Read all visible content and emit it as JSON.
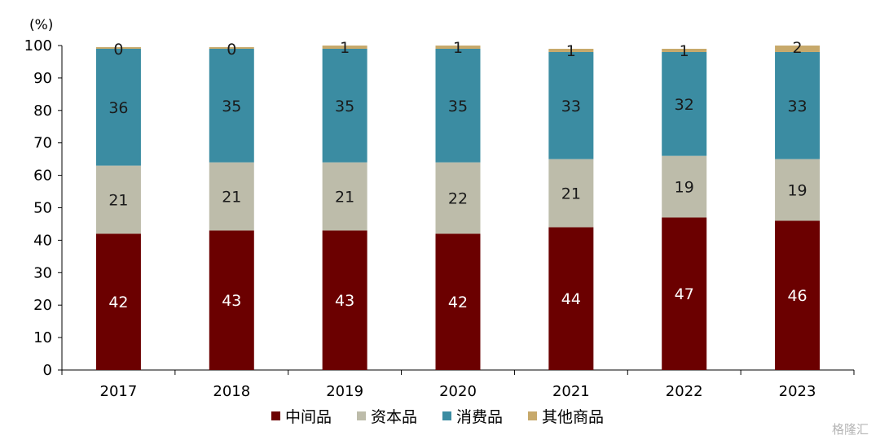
{
  "chart_data": {
    "type": "bar",
    "stacked": true,
    "unit_label": "(%)",
    "categories": [
      "2017",
      "2018",
      "2019",
      "2020",
      "2021",
      "2022",
      "2023"
    ],
    "ylim": [
      0,
      100
    ],
    "yticks": [
      0,
      10,
      20,
      30,
      40,
      50,
      60,
      70,
      80,
      90,
      100
    ],
    "series": [
      {
        "name": "中间品",
        "color": "#6b0000",
        "values": [
          42,
          43,
          43,
          42,
          44,
          47,
          46
        ],
        "labels": [
          "42",
          "43",
          "43",
          "42",
          "44",
          "47",
          "46"
        ]
      },
      {
        "name": "资本品",
        "color": "#bdbcaa",
        "values": [
          21,
          21,
          21,
          22,
          21,
          19,
          19
        ],
        "labels": [
          "21",
          "21",
          "21",
          "22",
          "21",
          "19",
          "19"
        ]
      },
      {
        "name": "消费品",
        "color": "#3b8ca2",
        "values": [
          36,
          35,
          35,
          35,
          33,
          32,
          33
        ],
        "labels": [
          "36",
          "35",
          "35",
          "35",
          "33",
          "32",
          "33"
        ]
      },
      {
        "name": "其他商品",
        "color": "#c7a96b",
        "values": [
          0.5,
          0.5,
          1,
          1,
          1,
          1,
          2
        ],
        "labels": [
          "0",
          "0",
          "1",
          "1",
          "1",
          "1",
          "2"
        ]
      }
    ],
    "legend_position": "bottom",
    "grid": false
  },
  "watermark": "格隆汇"
}
